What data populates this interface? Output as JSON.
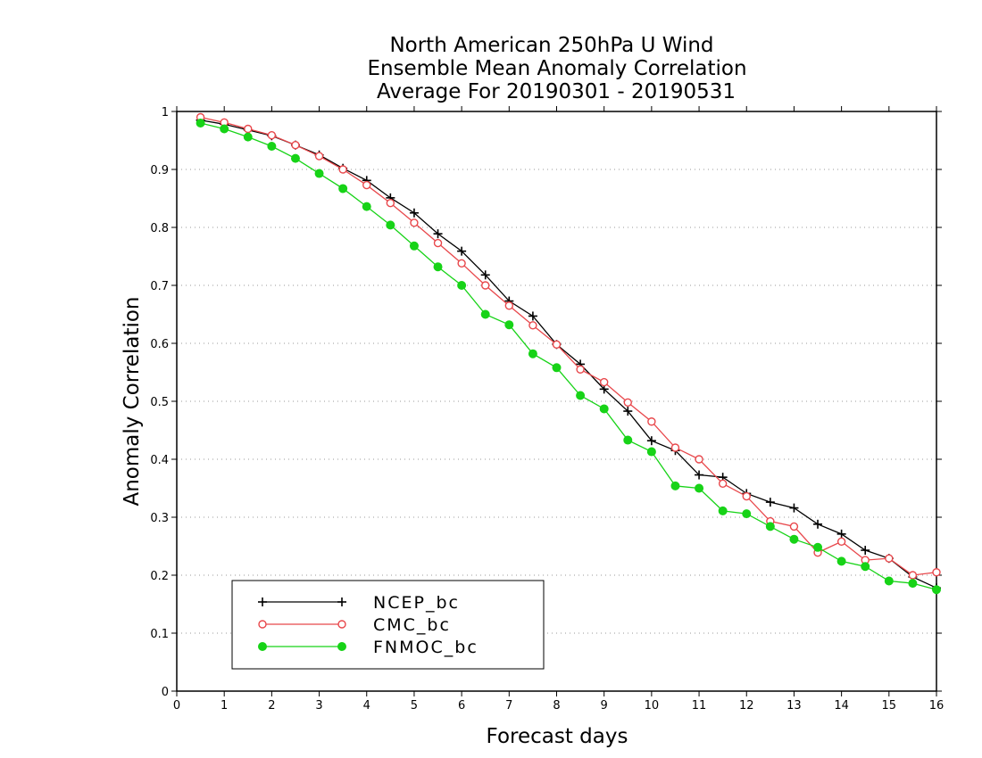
{
  "chart_data": {
    "type": "line",
    "title_lines": [
      "North American 250hPa U Wind",
      "Ensemble Mean Anomaly Correlation",
      "Average For 20190301 - 20190531"
    ],
    "xlabel": "Forecast days",
    "ylabel": "Anomaly Correlation",
    "xlim": [
      0,
      16
    ],
    "ylim": [
      0,
      1
    ],
    "xticks": [
      0,
      1,
      2,
      3,
      4,
      5,
      6,
      7,
      8,
      9,
      10,
      11,
      12,
      13,
      14,
      15,
      16
    ],
    "yticks": [
      0,
      0.1,
      0.2,
      0.3,
      0.4,
      0.5,
      0.6,
      0.7,
      0.8,
      0.9,
      1
    ],
    "ytick_labels": [
      "0",
      "0.1",
      "0.2",
      "0.3",
      "0.4",
      "0.5",
      "0.6",
      "0.7",
      "0.8",
      "0.9",
      "1"
    ],
    "grid": "horizontal-dotted",
    "legend_position": "bottom-left",
    "x": [
      0.5,
      1,
      1.5,
      2,
      2.5,
      3,
      3.5,
      4,
      4.5,
      5,
      5.5,
      6,
      6.5,
      7,
      7.5,
      8,
      8.5,
      9,
      9.5,
      10,
      10.5,
      11,
      11.5,
      12,
      12.5,
      13,
      13.5,
      14,
      14.5,
      15,
      15.5,
      16
    ],
    "series": [
      {
        "name": "NCEP_bc",
        "color": "#000000",
        "marker": "plus",
        "values": [
          0.985,
          0.978,
          0.968,
          0.958,
          0.942,
          0.925,
          0.902,
          0.881,
          0.851,
          0.825,
          0.789,
          0.759,
          0.718,
          0.673,
          0.647,
          0.598,
          0.564,
          0.521,
          0.483,
          0.432,
          0.415,
          0.373,
          0.369,
          0.341,
          0.326,
          0.316,
          0.288,
          0.271,
          0.243,
          0.229,
          0.197,
          0.178
        ]
      },
      {
        "name": "CMC_bc",
        "color": "#e8474b",
        "marker": "open-circle",
        "values": [
          0.99,
          0.981,
          0.97,
          0.959,
          0.942,
          0.923,
          0.9,
          0.873,
          0.842,
          0.808,
          0.773,
          0.738,
          0.7,
          0.665,
          0.631,
          0.598,
          0.555,
          0.533,
          0.498,
          0.465,
          0.42,
          0.4,
          0.358,
          0.336,
          0.293,
          0.284,
          0.239,
          0.258,
          0.226,
          0.229,
          0.2,
          0.205
        ]
      },
      {
        "name": "FNMOC_bc",
        "color": "#17d317",
        "marker": "filled-circle",
        "values": [
          0.98,
          0.97,
          0.956,
          0.94,
          0.919,
          0.893,
          0.867,
          0.836,
          0.804,
          0.768,
          0.732,
          0.7,
          0.65,
          0.632,
          0.582,
          0.558,
          0.51,
          0.487,
          0.433,
          0.413,
          0.354,
          0.35,
          0.311,
          0.306,
          0.284,
          0.262,
          0.248,
          0.224,
          0.215,
          0.19,
          0.186,
          0.175
        ]
      }
    ]
  }
}
